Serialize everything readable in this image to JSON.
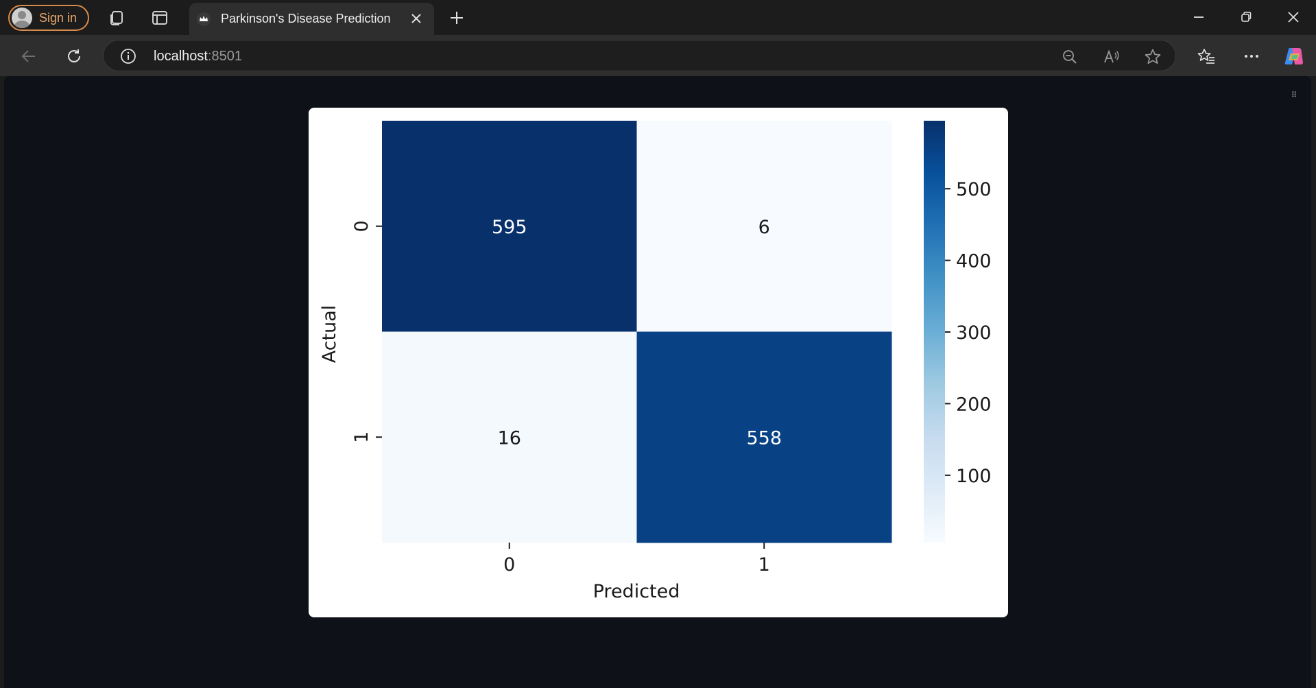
{
  "browser": {
    "signin_label": "Sign in",
    "tab_title": "Parkinson's Disease Prediction",
    "url_host": "localhost",
    "url_port": ":8501"
  },
  "icons": {
    "profile": "avatar-icon",
    "collections": "collections-icon",
    "tab_actions": "tab-actions-icon",
    "favicon": "streamlit-crown-icon",
    "close_tab": "close-icon",
    "new_tab": "plus-icon",
    "minimize": "minimize-icon",
    "restore": "restore-icon",
    "close_window": "close-icon",
    "back": "arrow-left-icon",
    "reload": "reload-icon",
    "site_info": "info-icon",
    "zoom": "zoom-out-icon",
    "read_aloud": "read-aloud-icon",
    "favorite": "star-icon",
    "favorites_list": "favorites-icon",
    "more": "more-icon",
    "copilot": "copilot-icon",
    "app_menu": "drag-handle-icon"
  },
  "chart_data": {
    "type": "heatmap",
    "xlabel": "Predicted",
    "ylabel": "Actual",
    "x_categories": [
      "0",
      "1"
    ],
    "y_categories": [
      "0",
      "1"
    ],
    "values": [
      [
        595,
        6
      ],
      [
        16,
        558
      ]
    ],
    "colormap": "Blues",
    "colorbar": {
      "range": [
        6,
        595
      ],
      "ticks": [
        100,
        200,
        300,
        400,
        500
      ],
      "tick_labels": [
        "100",
        "200",
        "300",
        "400",
        "500"
      ]
    },
    "colors": {
      "low": "#f7fbff",
      "high": "#08306b"
    }
  }
}
